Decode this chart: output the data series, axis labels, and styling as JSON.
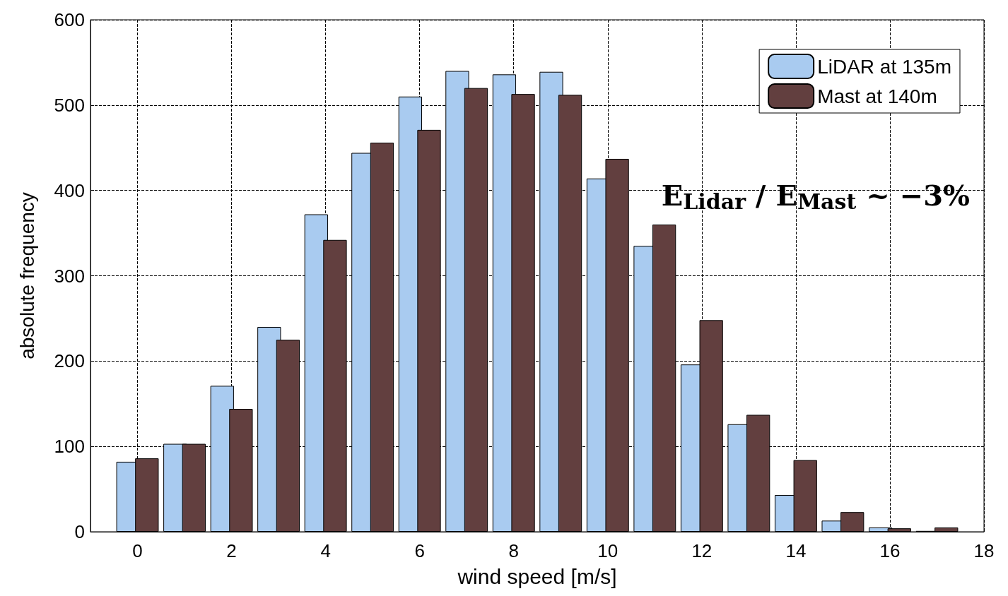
{
  "chart_data": {
    "type": "bar",
    "xlabel": "wind speed [m/s]",
    "ylabel": "absolute frequency",
    "x": [
      0,
      1,
      2,
      3,
      4,
      5,
      6,
      7,
      8,
      9,
      10,
      11,
      12,
      13,
      14,
      15,
      16,
      17
    ],
    "series": [
      {
        "name": "LiDAR at 135m",
        "color": "#a9cbf0",
        "values": [
          82,
          103,
          171,
          240,
          372,
          444,
          510,
          540,
          536,
          539,
          414,
          335,
          196,
          126,
          43,
          13,
          5,
          1
        ]
      },
      {
        "name": "Mast at 140m",
        "color": "#623f3f",
        "values": [
          86,
          103,
          144,
          225,
          342,
          456,
          471,
          520,
          513,
          512,
          437,
          360,
          248,
          137,
          84,
          23,
          4,
          5
        ]
      }
    ],
    "xlim": [
      -1,
      18
    ],
    "xticks": [
      0,
      2,
      4,
      6,
      8,
      10,
      12,
      14,
      16,
      18
    ],
    "ylim": [
      0,
      600
    ],
    "yticks": [
      0,
      100,
      200,
      300,
      400,
      500,
      600
    ],
    "grid": true,
    "legend": "top right",
    "annotations": [
      "E$_{Lidar}$ / E$_{Mast}$ ~ −3%"
    ]
  }
}
